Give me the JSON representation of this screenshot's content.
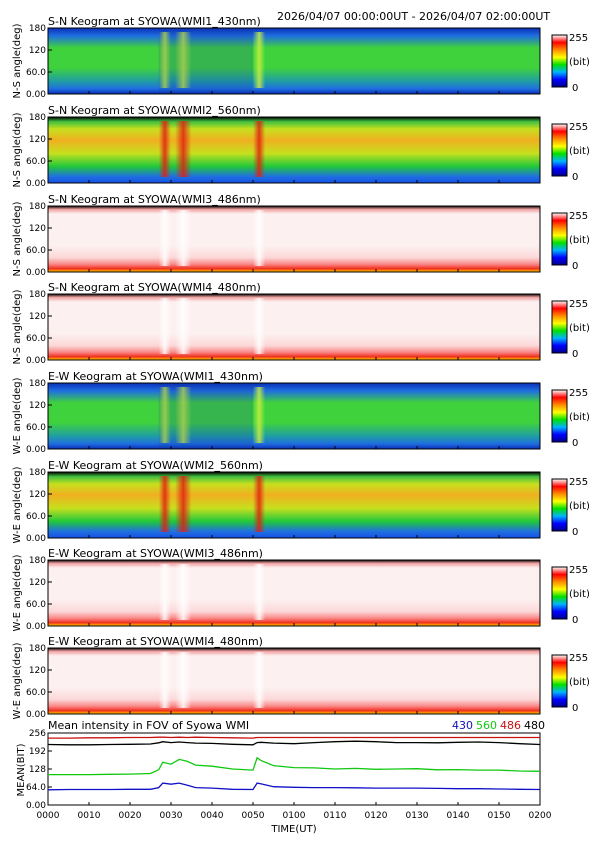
{
  "header": {
    "time_range": "2026/04/07 00:00:00UT - 2026/04/07 02:00:00UT"
  },
  "keograms": [
    {
      "title": "S-N Keogram at SYOWA(WMI1_430nm)",
      "ylabel": "N-S angle(deg)",
      "palette": "green",
      "y_ticks": [
        "180",
        "120",
        "60.0",
        "0.00"
      ]
    },
    {
      "title": "S-N Keogram at SYOWA(WMI2_560nm)",
      "ylabel": "N-S angle(deg)",
      "palette": "yellow",
      "y_ticks": [
        "180",
        "120",
        "60.0",
        "0.00"
      ]
    },
    {
      "title": "S-N Keogram at SYOWA(WMI3_486nm)",
      "ylabel": "N-S angle(deg)",
      "palette": "pink",
      "y_ticks": [
        "180",
        "120",
        "60.0",
        "0.00"
      ]
    },
    {
      "title": "S-N Keogram at SYOWA(WMI4_480nm)",
      "ylabel": "N-S angle(deg)",
      "palette": "pink",
      "y_ticks": [
        "180",
        "120",
        "60.0",
        "0.00"
      ]
    },
    {
      "title": "E-W Keogram at SYOWA(WMI1_430nm)",
      "ylabel": "W-E angle(deg)",
      "palette": "green",
      "y_ticks": [
        "180",
        "120",
        "60.0",
        "0.00"
      ]
    },
    {
      "title": "E-W Keogram at SYOWA(WMI2_560nm)",
      "ylabel": "W-E angle(deg)",
      "palette": "yellow",
      "y_ticks": [
        "180",
        "120",
        "60.0",
        "0.00"
      ]
    },
    {
      "title": "E-W Keogram at SYOWA(WMI3_486nm)",
      "ylabel": "W-E angle(deg)",
      "palette": "pink",
      "y_ticks": [
        "180",
        "120",
        "60.0",
        "0.00"
      ]
    },
    {
      "title": "E-W Keogram at SYOWA(WMI4_480nm)",
      "ylabel": "W-E angle(deg)",
      "palette": "pink",
      "y_ticks": [
        "180",
        "120",
        "60.0",
        "0.00"
      ]
    }
  ],
  "colorbar": {
    "max_label": "255",
    "unit_label": "(bit)",
    "min_label": "0",
    "stops": [
      "#00008b",
      "#0000ff",
      "#00b4ff",
      "#00e000",
      "#ffff00",
      "#ff8c00",
      "#ff0000",
      "#ffffff"
    ]
  },
  "palettes": {
    "green": {
      "base": "#3fd23c",
      "edge": "#1f6fe0",
      "dark": "#0a2fb8",
      "bright": "#b8ee30"
    },
    "yellow": {
      "base": "#c6e01e",
      "edge": "#20c83a",
      "dark": "#1650e6",
      "bright": "#f05818"
    },
    "pink": {
      "base": "#fdf0f0",
      "edge": "#fa8a8a",
      "dark": "#f03020",
      "bright": "#ffffff"
    }
  },
  "mean_panel": {
    "title": "Mean intensity in FOV of Syowa WMI",
    "ylabel": "MEAN(BIT)",
    "xlabel": "TIME(UT)",
    "y_ticks": [
      "256",
      "192",
      "128",
      "64.0",
      "0.00"
    ]
  },
  "time_axis": {
    "ticks": [
      "0000",
      "0010",
      "0020",
      "0030",
      "0040",
      "0050",
      "0100",
      "0110",
      "0120",
      "0130",
      "0140",
      "0150",
      "0200"
    ]
  },
  "chart_data": {
    "type": "line",
    "title": "Mean intensity in FOV of Syowa WMI",
    "xlabel": "TIME(UT)",
    "ylabel": "MEAN(BIT)",
    "ylim": [
      0,
      256
    ],
    "x_unit": "minutes",
    "xlim": [
      0,
      120
    ],
    "x": [
      0,
      5,
      10,
      15,
      20,
      25,
      27,
      28,
      30,
      32,
      34,
      36,
      40,
      45,
      50,
      51,
      52,
      55,
      60,
      65,
      70,
      75,
      80,
      85,
      90,
      95,
      100,
      105,
      110,
      115,
      120
    ],
    "series": [
      {
        "name": "430",
        "color": "#1010c8",
        "values": [
          54,
          55,
          55,
          55,
          56,
          56,
          62,
          78,
          74,
          78,
          70,
          62,
          60,
          56,
          55,
          78,
          75,
          65,
          63,
          62,
          62,
          61,
          60,
          60,
          60,
          59,
          58,
          58,
          57,
          56,
          55
        ]
      },
      {
        "name": "560",
        "color": "#10c810",
        "values": [
          108,
          108,
          108,
          109,
          110,
          112,
          125,
          152,
          145,
          162,
          155,
          142,
          138,
          128,
          124,
          168,
          158,
          140,
          133,
          132,
          128,
          130,
          127,
          128,
          129,
          125,
          126,
          124,
          124,
          121,
          120
        ]
      },
      {
        "name": "486",
        "color": "#c81010",
        "values": [
          238,
          238,
          239,
          239,
          240,
          240,
          241,
          241,
          240,
          241,
          240,
          241,
          240,
          239,
          238,
          240,
          240,
          240,
          240,
          240,
          240,
          240,
          240,
          240,
          240,
          240,
          240,
          240,
          240,
          240,
          240
        ]
      },
      {
        "name": "480",
        "color": "#000000",
        "values": [
          215,
          214,
          214,
          215,
          216,
          217,
          221,
          225,
          222,
          224,
          222,
          220,
          219,
          216,
          214,
          222,
          223,
          220,
          218,
          222,
          225,
          227,
          225,
          222,
          222,
          221,
          223,
          224,
          222,
          218,
          215
        ]
      }
    ]
  }
}
